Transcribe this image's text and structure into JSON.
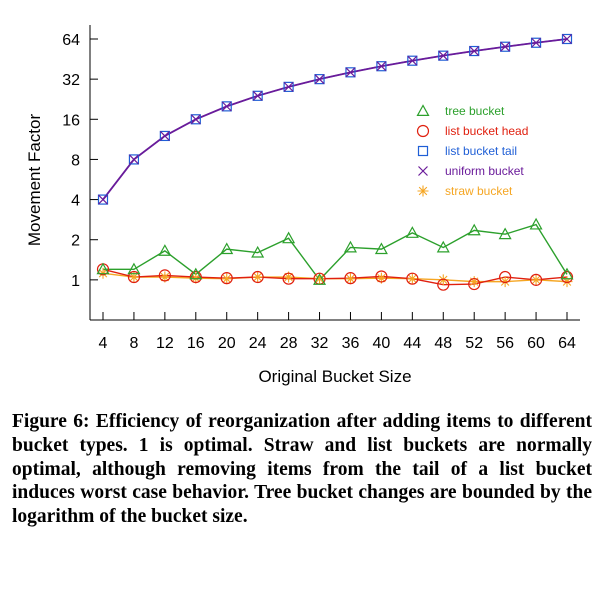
{
  "chart_data": {
    "type": "line",
    "title": "",
    "xlabel": "Original Bucket Size",
    "ylabel": "Movement Factor",
    "yscale": "log2",
    "ylim": [
      0.5,
      64
    ],
    "xlim": [
      4,
      64
    ],
    "x": [
      4,
      8,
      12,
      16,
      20,
      24,
      28,
      32,
      36,
      40,
      44,
      48,
      52,
      56,
      60,
      64
    ],
    "xticks": [
      "4",
      "8",
      "12",
      "16",
      "20",
      "24",
      "28",
      "32",
      "36",
      "40",
      "44",
      "48",
      "52",
      "56",
      "60",
      "64"
    ],
    "yticks": [
      {
        "value": 1,
        "label": "1"
      },
      {
        "value": 2,
        "label": "2"
      },
      {
        "value": 4,
        "label": "4"
      },
      {
        "value": 8,
        "label": "8"
      },
      {
        "value": 16,
        "label": "16"
      },
      {
        "value": 32,
        "label": "32"
      },
      {
        "value": 64,
        "label": "64"
      }
    ],
    "legend_position": "right",
    "series": [
      {
        "name": "tree bucket",
        "marker": "triangle",
        "color": "#2ca02c",
        "values": [
          1.2,
          1.2,
          1.65,
          1.1,
          1.7,
          1.6,
          2.05,
          1.0,
          1.75,
          1.7,
          2.25,
          1.75,
          2.35,
          2.2,
          2.6,
          1.1
        ]
      },
      {
        "name": "list bucket head",
        "marker": "circle",
        "color": "#e0200f",
        "values": [
          1.2,
          1.05,
          1.08,
          1.05,
          1.03,
          1.05,
          1.02,
          1.02,
          1.03,
          1.06,
          1.02,
          0.92,
          0.93,
          1.05,
          1.0,
          1.05
        ]
      },
      {
        "name": "list bucket tail",
        "marker": "square",
        "color": "#1f5fd6",
        "values": [
          4,
          8,
          12,
          16,
          20,
          24,
          28,
          32,
          36,
          40,
          44,
          48,
          52,
          56,
          60,
          64
        ]
      },
      {
        "name": "uniform bucket",
        "marker": "x",
        "color": "#6a1b9a",
        "values": [
          4,
          8,
          12,
          16,
          20,
          24,
          28,
          32,
          36,
          40,
          44,
          48,
          52,
          56,
          60,
          64
        ]
      },
      {
        "name": "straw bucket",
        "marker": "star",
        "color": "#f5a623",
        "values": [
          1.12,
          1.05,
          1.05,
          1.03,
          1.02,
          1.05,
          1.05,
          1.02,
          1.02,
          1.03,
          1.02,
          1.0,
          0.97,
          0.97,
          1.0,
          0.97
        ]
      }
    ]
  },
  "caption": "Figure 6: Efficiency of reorganization after adding items to different bucket types.  1 is optimal.  Straw and list buckets are normally optimal, although removing items from the tail of a list bucket induces worst case behavior. Tree bucket changes are bounded by the logarithm of the bucket size."
}
